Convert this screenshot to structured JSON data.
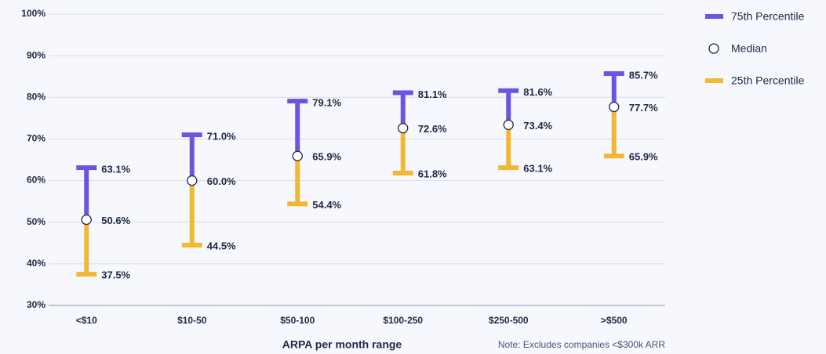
{
  "chart_data": {
    "type": "range",
    "categories": [
      "<$10",
      "$10-50",
      "$50-100",
      "$100-250",
      "$250-500",
      ">$500"
    ],
    "series": [
      {
        "name": "75th Percentile",
        "color": "#6b55e0",
        "values": [
          63.1,
          71.0,
          79.1,
          81.1,
          81.6,
          85.7
        ],
        "value_labels": [
          "63.1%",
          "71.0%",
          "79.1%",
          "81.1%",
          "81.6%",
          "85.7%"
        ]
      },
      {
        "name": "Median",
        "color": "#ffffff",
        "values": [
          50.6,
          60.0,
          65.9,
          72.6,
          73.4,
          77.7
        ],
        "value_labels": [
          "50.6%",
          "60.0%",
          "65.9%",
          "72.6%",
          "73.4%",
          "77.7%"
        ]
      },
      {
        "name": "25th Percentile",
        "color": "#f2b733",
        "values": [
          37.5,
          44.5,
          54.4,
          61.8,
          63.1,
          65.9
        ],
        "value_labels": [
          "37.5%",
          "44.5%",
          "54.4%",
          "61.8%",
          "63.1%",
          "65.9%"
        ]
      }
    ],
    "ylim": [
      30,
      100
    ],
    "yticks": [
      {
        "value": 30,
        "label": "30%"
      },
      {
        "value": 40,
        "label": "40%"
      },
      {
        "value": 50,
        "label": "50%"
      },
      {
        "value": 60,
        "label": "60%"
      },
      {
        "value": 70,
        "label": "70%"
      },
      {
        "value": 80,
        "label": "80%"
      },
      {
        "value": 90,
        "label": "90%"
      },
      {
        "value": 100,
        "label": "100%"
      }
    ],
    "grid": true,
    "xlabel": "ARPA per month range",
    "note": "Note: Excludes companies <$300k ARR",
    "legend": "right"
  }
}
